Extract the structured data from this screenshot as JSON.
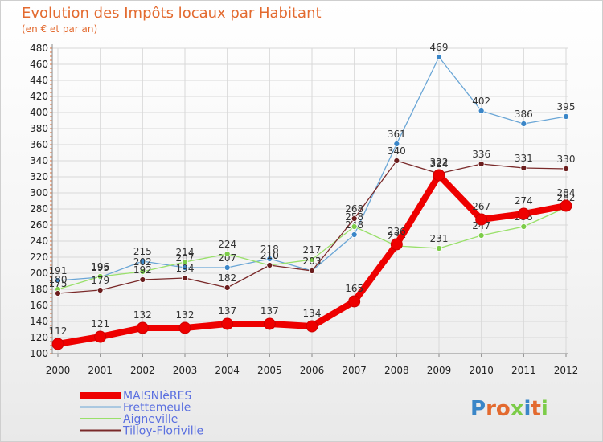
{
  "chart_data": {
    "type": "line",
    "title": "Evolution des Impôts locaux par Habitant",
    "subtitle": "(en € et par an)",
    "xlabel": "",
    "ylabel": "",
    "ylim": [
      100,
      480
    ],
    "yticks": [
      100,
      120,
      140,
      160,
      180,
      200,
      220,
      240,
      260,
      280,
      300,
      320,
      340,
      360,
      380,
      400,
      420,
      440,
      460,
      480
    ],
    "x": [
      "2000",
      "2001",
      "2002",
      "2003",
      "2004",
      "2005",
      "2006",
      "2007",
      "2008",
      "2009",
      "2010",
      "2011",
      "2012"
    ],
    "grid": true,
    "legend_position": "bottom-left",
    "series": [
      {
        "name": "Frettemeule",
        "color": "#6aa6d6",
        "marker": "#3a86c8",
        "values": [
          191,
          195,
          215,
          207,
          207,
          218,
          203,
          248,
          361,
          469,
          402,
          386,
          395
        ]
      },
      {
        "name": "Aigneville",
        "color": "#99e06a",
        "marker": "#7ccc48",
        "values": [
          180,
          196,
          202,
          214,
          224,
          210,
          217,
          258,
          234,
          231,
          247,
          258,
          282
        ]
      },
      {
        "name": "Tilloy-Floriville",
        "color": "#7a2a2a",
        "marker": "#6b1d1d",
        "values": [
          175,
          179,
          192,
          194,
          182,
          210,
          203,
          268,
          340,
          324,
          336,
          331,
          330
        ]
      },
      {
        "name": "MAISNIèRES",
        "color": "#ee0000",
        "marker": "#ee0000",
        "values": [
          112,
          121,
          132,
          132,
          137,
          137,
          134,
          165,
          236,
          322,
          267,
          274,
          284
        ]
      }
    ]
  },
  "logo": {
    "text": "Proxiti",
    "colors": [
      "#3a86c8",
      "#e36a2f",
      "#e36a2f",
      "#7ccc48",
      "#3a86c8",
      "#e36a2f",
      "#7ccc48"
    ]
  }
}
